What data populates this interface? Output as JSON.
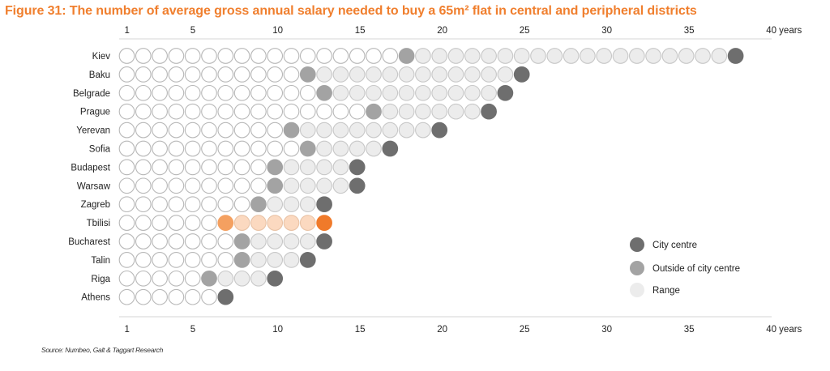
{
  "chart_data": {
    "type": "dot-range",
    "title": "Figure 31: The number of average gross annual salary needed to buy a 65m² flat in central and peripheral districts",
    "x_ticks": [
      "1",
      "5",
      "10",
      "15",
      "20",
      "25",
      "30",
      "35",
      "40 years"
    ],
    "x_tick_values": [
      1,
      5,
      10,
      15,
      20,
      25,
      30,
      35,
      40
    ],
    "xlim": [
      1,
      40
    ],
    "xlabel": "years",
    "categories": [
      "Kiev",
      "Baku",
      "Belgrade",
      "Prague",
      "Yerevan",
      "Sofia",
      "Budapest",
      "Warsaw",
      "Zagreb",
      "Tbilisi",
      "Bucharest",
      "Talin",
      "Riga",
      "Athens"
    ],
    "series": [
      {
        "name": "City centre",
        "values": [
          38,
          25,
          24,
          23,
          20,
          17,
          15,
          15,
          13,
          13,
          13,
          12,
          10,
          7
        ]
      },
      {
        "name": "Outside of city centre",
        "values": [
          18,
          12,
          13,
          16,
          11,
          12,
          10,
          10,
          9,
          7,
          8,
          8,
          6,
          null
        ]
      }
    ],
    "highlight": {
      "category": "Tbilisi",
      "colors": {
        "centre": "#f07a2a",
        "outside": "#f4a060",
        "range": "#fbd9c0"
      }
    },
    "colors": {
      "centre": "#6e6e6e",
      "outside": "#a3a3a3",
      "range": "#ececec",
      "empty": "#ffffff",
      "outline": "#b8b8b8"
    },
    "legend": {
      "position": "bottom-right",
      "items": [
        {
          "label": "City centre",
          "key": "centre"
        },
        {
          "label": "Outside of city centre",
          "key": "outside"
        },
        {
          "label": "Range",
          "key": "range"
        }
      ]
    },
    "source": "Source: Numbeo, Galt & Taggart Research"
  }
}
